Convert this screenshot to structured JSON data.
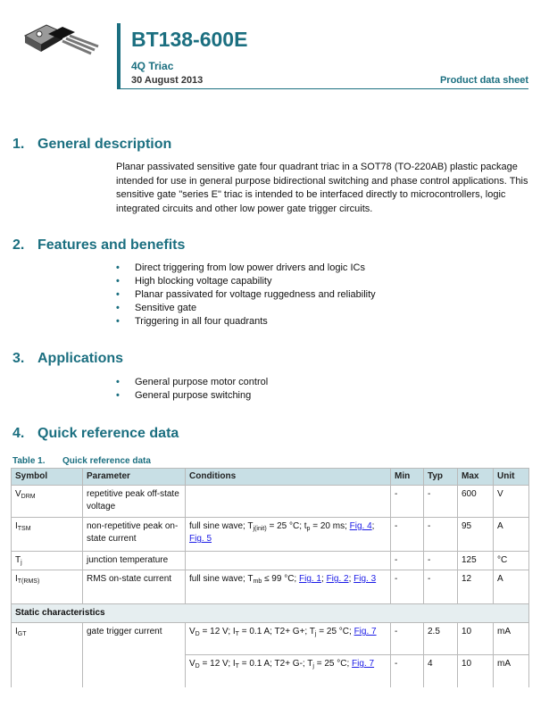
{
  "header": {
    "title": "BT138-600E",
    "subtitle": "4Q Triac",
    "date": "30 August 2013",
    "doc_type": "Product data sheet"
  },
  "sections": [
    {
      "number": "1.",
      "title": "General description",
      "paragraph": "Planar passivated sensitive gate four quadrant triac in a SOT78 (TO-220AB) plastic package intended for use in general purpose bidirectional switching and phase control applications. This sensitive gate \"series E\" triac is intended to be interfaced directly to microcontrollers, logic integrated circuits and other low power gate trigger circuits."
    },
    {
      "number": "2.",
      "title": "Features and benefits",
      "bullets": [
        "Direct triggering from low power drivers and logic ICs",
        "High blocking voltage capability",
        "Planar passivated for voltage ruggedness and reliability",
        "Sensitive gate",
        "Triggering in all four quadrants"
      ]
    },
    {
      "number": "3.",
      "title": "Applications",
      "bullets": [
        "General purpose motor control",
        "General purpose switching"
      ]
    },
    {
      "number": "4.",
      "title": "Quick reference data"
    }
  ],
  "table": {
    "number": "Table 1.",
    "caption": "Quick reference data",
    "columns": [
      "Symbol",
      "Parameter",
      "Conditions",
      "Min",
      "Typ",
      "Max",
      "Unit"
    ],
    "rows": [
      {
        "symbol": [
          {
            "t": "V"
          },
          {
            "sub": "DRM"
          }
        ],
        "parameter": "repetitive peak off-state voltage",
        "conditions": [],
        "min": "-",
        "typ": "-",
        "max": 600,
        "unit": "V"
      },
      {
        "symbol": [
          {
            "t": "I"
          },
          {
            "sub": "TSM"
          }
        ],
        "parameter": "non-repetitive peak on-state current",
        "conditions": [
          {
            "t": "full sine wave; T"
          },
          {
            "sub": "j(init)"
          },
          {
            "t": " = 25 °C; t"
          },
          {
            "sub": "p"
          },
          {
            "t": " = 20 ms; "
          },
          {
            "link": "Fig. 4"
          },
          {
            "t": "; "
          },
          {
            "link": "Fig. 5"
          }
        ],
        "min": "-",
        "typ": "-",
        "max": 95,
        "unit": "A"
      },
      {
        "symbol": [
          {
            "t": "T"
          },
          {
            "sub": "j"
          }
        ],
        "parameter": "junction temperature",
        "conditions": [],
        "min": "-",
        "typ": "-",
        "max": 125,
        "unit": "°C"
      },
      {
        "symbol": [
          {
            "t": "I"
          },
          {
            "sub": "T(RMS)"
          }
        ],
        "parameter": "RMS on-state current",
        "conditions": [
          {
            "t": "full sine wave; T"
          },
          {
            "sub": "mb"
          },
          {
            "t": " ≤ 99 °C; "
          },
          {
            "link": "Fig. 1"
          },
          {
            "t": "; "
          },
          {
            "link": "Fig. 2"
          },
          {
            "t": "; "
          },
          {
            "link": "Fig. 3"
          }
        ],
        "min": "-",
        "typ": "-",
        "max": 12,
        "unit": "A"
      },
      {
        "group": "Static characteristics"
      },
      {
        "symbol": [
          {
            "t": "I"
          },
          {
            "sub": "GT"
          }
        ],
        "parameter": "gate trigger current",
        "conditions": [
          {
            "t": "V"
          },
          {
            "sub": "D"
          },
          {
            "t": " = 12 V; I"
          },
          {
            "sub": "T"
          },
          {
            "t": " = 0.1 A; T2+ G+; T"
          },
          {
            "sub": "j"
          },
          {
            "t": " = 25 °C; "
          },
          {
            "link": "Fig. 7"
          }
        ],
        "min": "-",
        "typ": 2.5,
        "max": 10,
        "unit": "mA"
      },
      {
        "conditions": [
          {
            "t": "V"
          },
          {
            "sub": "D"
          },
          {
            "t": " = 12 V; I"
          },
          {
            "sub": "T"
          },
          {
            "t": " = 0.1 A; T2+ G-; T"
          },
          {
            "sub": "j"
          },
          {
            "t": " = 25 °C; "
          },
          {
            "link": "Fig. 7"
          }
        ],
        "min": "-",
        "typ": 4,
        "max": 10,
        "unit": "mA"
      }
    ]
  }
}
